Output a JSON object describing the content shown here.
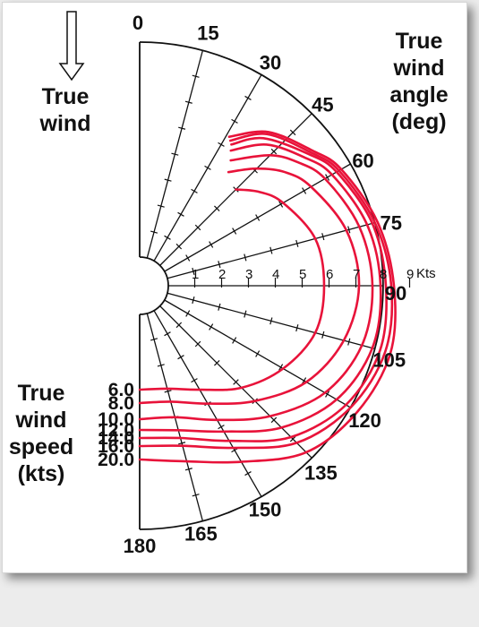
{
  "labels": {
    "true_wind": [
      "True",
      "wind"
    ],
    "angle_axis": [
      "True",
      "wind",
      "angle",
      "(deg)"
    ],
    "speed_axis": [
      "True",
      "wind",
      "speed",
      "(kts)"
    ],
    "kts_unit": "Kts"
  },
  "colors": {
    "curve": "#e8133a",
    "ink": "#111111",
    "background": "#ffffff"
  },
  "icons": {
    "wind_direction": "down-arrow-outline"
  },
  "chart_data": {
    "type": "polar",
    "angle_ticks": [
      0,
      15,
      30,
      45,
      60,
      75,
      90,
      105,
      120,
      135,
      150,
      165,
      180
    ],
    "radial_ticks": [
      "1",
      "2",
      "3",
      "4",
      "5",
      "6",
      "7",
      "8",
      "9"
    ],
    "radial_max": 9,
    "series": [
      {
        "name": "6.0",
        "points": [
          [
            45,
            4.0
          ],
          [
            52,
            4.6
          ],
          [
            60,
            5.1
          ],
          [
            75,
            5.7
          ],
          [
            90,
            5.8
          ],
          [
            105,
            5.7
          ],
          [
            120,
            5.1
          ],
          [
            135,
            4.3
          ],
          [
            150,
            3.4
          ],
          [
            165,
            2.9
          ],
          [
            180,
            2.8
          ]
        ]
      },
      {
        "name": "8.0",
        "points": [
          [
            38,
            4.3
          ],
          [
            45,
            5.1
          ],
          [
            52,
            5.8
          ],
          [
            60,
            6.3
          ],
          [
            75,
            6.9
          ],
          [
            90,
            7.1
          ],
          [
            105,
            6.8
          ],
          [
            120,
            6.1
          ],
          [
            135,
            5.0
          ],
          [
            150,
            4.0
          ],
          [
            165,
            3.4
          ],
          [
            180,
            3.3
          ]
        ]
      },
      {
        "name": "10.0",
        "points": [
          [
            36,
            4.7
          ],
          [
            45,
            5.8
          ],
          [
            52,
            6.4
          ],
          [
            60,
            6.9
          ],
          [
            75,
            7.4
          ],
          [
            90,
            7.6
          ],
          [
            105,
            7.5
          ],
          [
            120,
            6.9
          ],
          [
            135,
            5.8
          ],
          [
            150,
            4.7
          ],
          [
            165,
            4.0
          ],
          [
            180,
            3.9
          ]
        ]
      },
      {
        "name": "12.0",
        "points": [
          [
            34,
            5.0
          ],
          [
            42,
            6.0
          ],
          [
            52,
            6.7
          ],
          [
            60,
            7.2
          ],
          [
            75,
            7.7
          ],
          [
            90,
            7.9
          ],
          [
            105,
            7.9
          ],
          [
            120,
            7.4
          ],
          [
            135,
            6.4
          ],
          [
            150,
            5.2
          ],
          [
            165,
            4.5
          ],
          [
            180,
            4.3
          ]
        ]
      },
      {
        "name": "14.0",
        "points": [
          [
            33,
            5.2
          ],
          [
            40,
            6.1
          ],
          [
            52,
            6.9
          ],
          [
            60,
            7.4
          ],
          [
            75,
            7.9
          ],
          [
            90,
            8.1
          ],
          [
            105,
            8.2
          ],
          [
            120,
            7.8
          ],
          [
            135,
            6.9
          ],
          [
            150,
            5.6
          ],
          [
            165,
            4.8
          ],
          [
            180,
            4.6
          ]
        ]
      },
      {
        "name": "16.0",
        "points": [
          [
            32,
            5.3
          ],
          [
            40,
            6.3
          ],
          [
            52,
            7.0
          ],
          [
            60,
            7.5
          ],
          [
            75,
            8.0
          ],
          [
            90,
            8.3
          ],
          [
            105,
            8.4
          ],
          [
            120,
            8.0
          ],
          [
            135,
            7.2
          ],
          [
            150,
            5.9
          ],
          [
            165,
            5.1
          ],
          [
            180,
            4.9
          ]
        ]
      },
      {
        "name": "20.0",
        "points": [
          [
            31,
            5.4
          ],
          [
            40,
            6.4
          ],
          [
            52,
            7.1
          ],
          [
            60,
            7.6
          ],
          [
            75,
            8.1
          ],
          [
            90,
            8.4
          ],
          [
            105,
            8.6
          ],
          [
            120,
            8.3
          ],
          [
            135,
            7.7
          ],
          [
            150,
            6.5
          ],
          [
            165,
            5.7
          ],
          [
            180,
            5.4
          ]
        ]
      }
    ]
  }
}
